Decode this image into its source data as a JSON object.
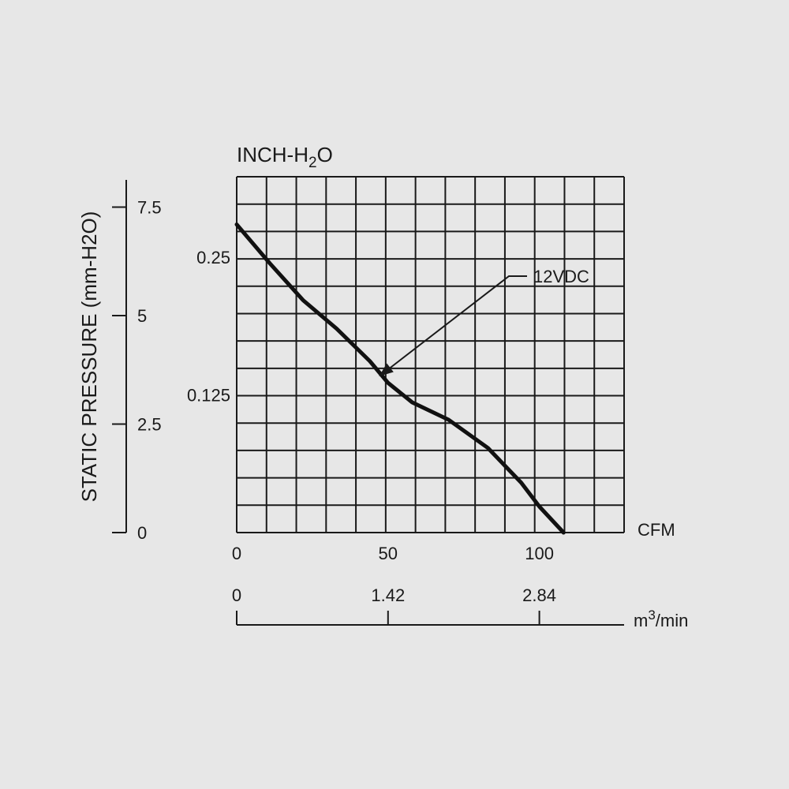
{
  "chart_data": {
    "type": "line",
    "title": "",
    "xlabel": "CFM",
    "x2label": "m3/min",
    "x2label_base": "m",
    "x2label_sup": "3",
    "x2label_rest": "/min",
    "ylabel": "STATIC PRESSURE (mm-H2O)",
    "y2label": "INCH-H2O",
    "y2label_base": "INCH-H",
    "y2label_sub": "2",
    "y2label_rest": "O",
    "xlim": [
      0,
      128
    ],
    "ylim": [
      0,
      8.2
    ],
    "grid": true,
    "x_ticks": [
      "0",
      "50",
      "100"
    ],
    "x_tick_values": [
      0,
      50,
      100
    ],
    "x2_ticks": [
      "0",
      "1.42",
      "2.84"
    ],
    "x2_tick_values": [
      0,
      1.42,
      2.84
    ],
    "y_ticks": [
      "0",
      "2.5",
      "5",
      "7.5"
    ],
    "y_tick_values": [
      0,
      2.5,
      5,
      7.5
    ],
    "y2_ticks": [
      "0.125",
      "0.25"
    ],
    "y2_tick_values": [
      0.125,
      0.25
    ],
    "series": [
      {
        "name": "12VDC",
        "x": [
          0,
          11,
          22,
          33,
          44,
          50,
          58,
          70,
          83,
          94,
          100,
          108
        ],
        "y": [
          7.1,
          6.2,
          5.35,
          4.7,
          3.95,
          3.45,
          3.0,
          2.6,
          1.95,
          1.15,
          0.6,
          0.0
        ]
      }
    ],
    "annotations": [
      {
        "text": "12VDC",
        "target_x": 47,
        "target_y": 3.6
      }
    ]
  }
}
